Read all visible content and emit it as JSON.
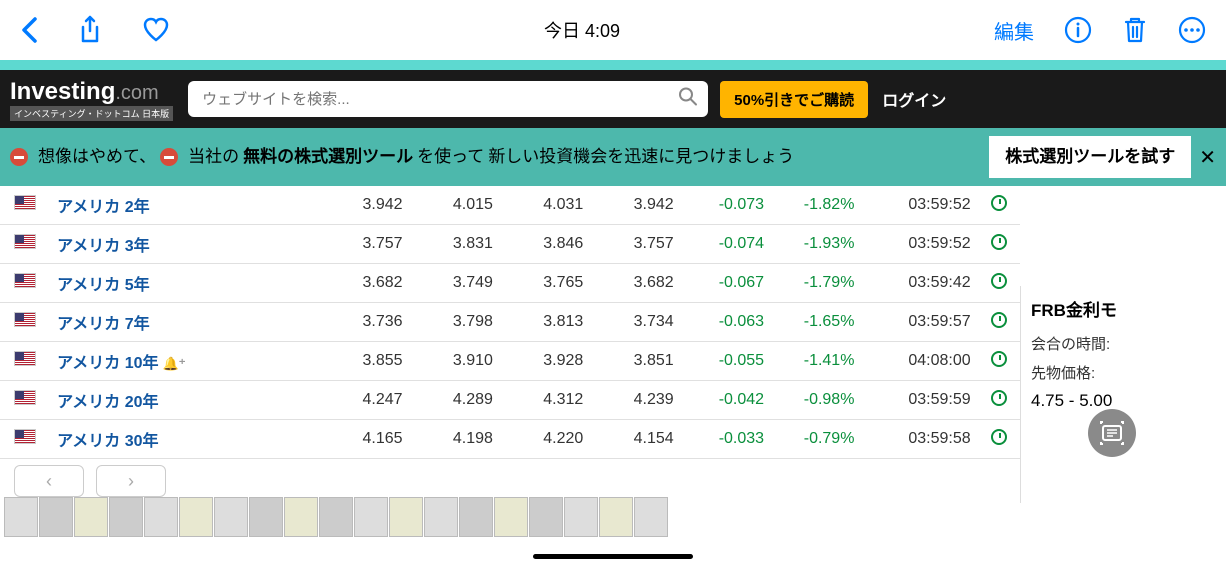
{
  "ios": {
    "time": "今日 4:09",
    "edit": "編集"
  },
  "header": {
    "logo": "Investing",
    "logo_suffix": ".com",
    "logo_sub": "インベスティング・ドットコム 日本版",
    "search_placeholder": "ウェブサイトを検索...",
    "promo": "50%引きでご購読",
    "login": "ログイン"
  },
  "banner": {
    "t1": "想像はやめて、",
    "t2": "当社の",
    "t3": "無料の株式選別ツール",
    "t4": "を使って",
    "t5": "新しい投資機会を迅速に見つけましょう",
    "cta": "株式選別ツールを試す",
    "close": "✕"
  },
  "rows": [
    {
      "name": "アメリカ 2年",
      "v1": "3.942",
      "v2": "4.015",
      "v3": "4.031",
      "v4": "3.942",
      "chg": "-0.073",
      "pct": "-1.82%",
      "time": "03:59:52",
      "bell": false
    },
    {
      "name": "アメリカ 3年",
      "v1": "3.757",
      "v2": "3.831",
      "v3": "3.846",
      "v4": "3.757",
      "chg": "-0.074",
      "pct": "-1.93%",
      "time": "03:59:52",
      "bell": false
    },
    {
      "name": "アメリカ 5年",
      "v1": "3.682",
      "v2": "3.749",
      "v3": "3.765",
      "v4": "3.682",
      "chg": "-0.067",
      "pct": "-1.79%",
      "time": "03:59:42",
      "bell": false
    },
    {
      "name": "アメリカ 7年",
      "v1": "3.736",
      "v2": "3.798",
      "v3": "3.813",
      "v4": "3.734",
      "chg": "-0.063",
      "pct": "-1.65%",
      "time": "03:59:57",
      "bell": false
    },
    {
      "name": "アメリカ 10年",
      "v1": "3.855",
      "v2": "3.910",
      "v3": "3.928",
      "v4": "3.851",
      "chg": "-0.055",
      "pct": "-1.41%",
      "time": "04:08:00",
      "bell": true
    },
    {
      "name": "アメリカ 20年",
      "v1": "4.247",
      "v2": "4.289",
      "v3": "4.312",
      "v4": "4.239",
      "chg": "-0.042",
      "pct": "-0.98%",
      "time": "03:59:59",
      "bell": false
    },
    {
      "name": "アメリカ 30年",
      "v1": "4.165",
      "v2": "4.198",
      "v3": "4.220",
      "v4": "4.154",
      "chg": "-0.033",
      "pct": "-0.79%",
      "time": "03:59:58",
      "bell": false
    }
  ],
  "sidebar": {
    "title": "FRB金利モ",
    "r1": "会合の時間:",
    "r2": "先物価格:",
    "val": "4.75 - 5.00"
  },
  "colors": {
    "ios_blue": "#007aff",
    "teal": "#5dd9d0",
    "banner_teal": "#4db8ac",
    "link_blue": "#1256a0",
    "green": "#0a8f3c",
    "promo_yellow": "#ffb400"
  }
}
